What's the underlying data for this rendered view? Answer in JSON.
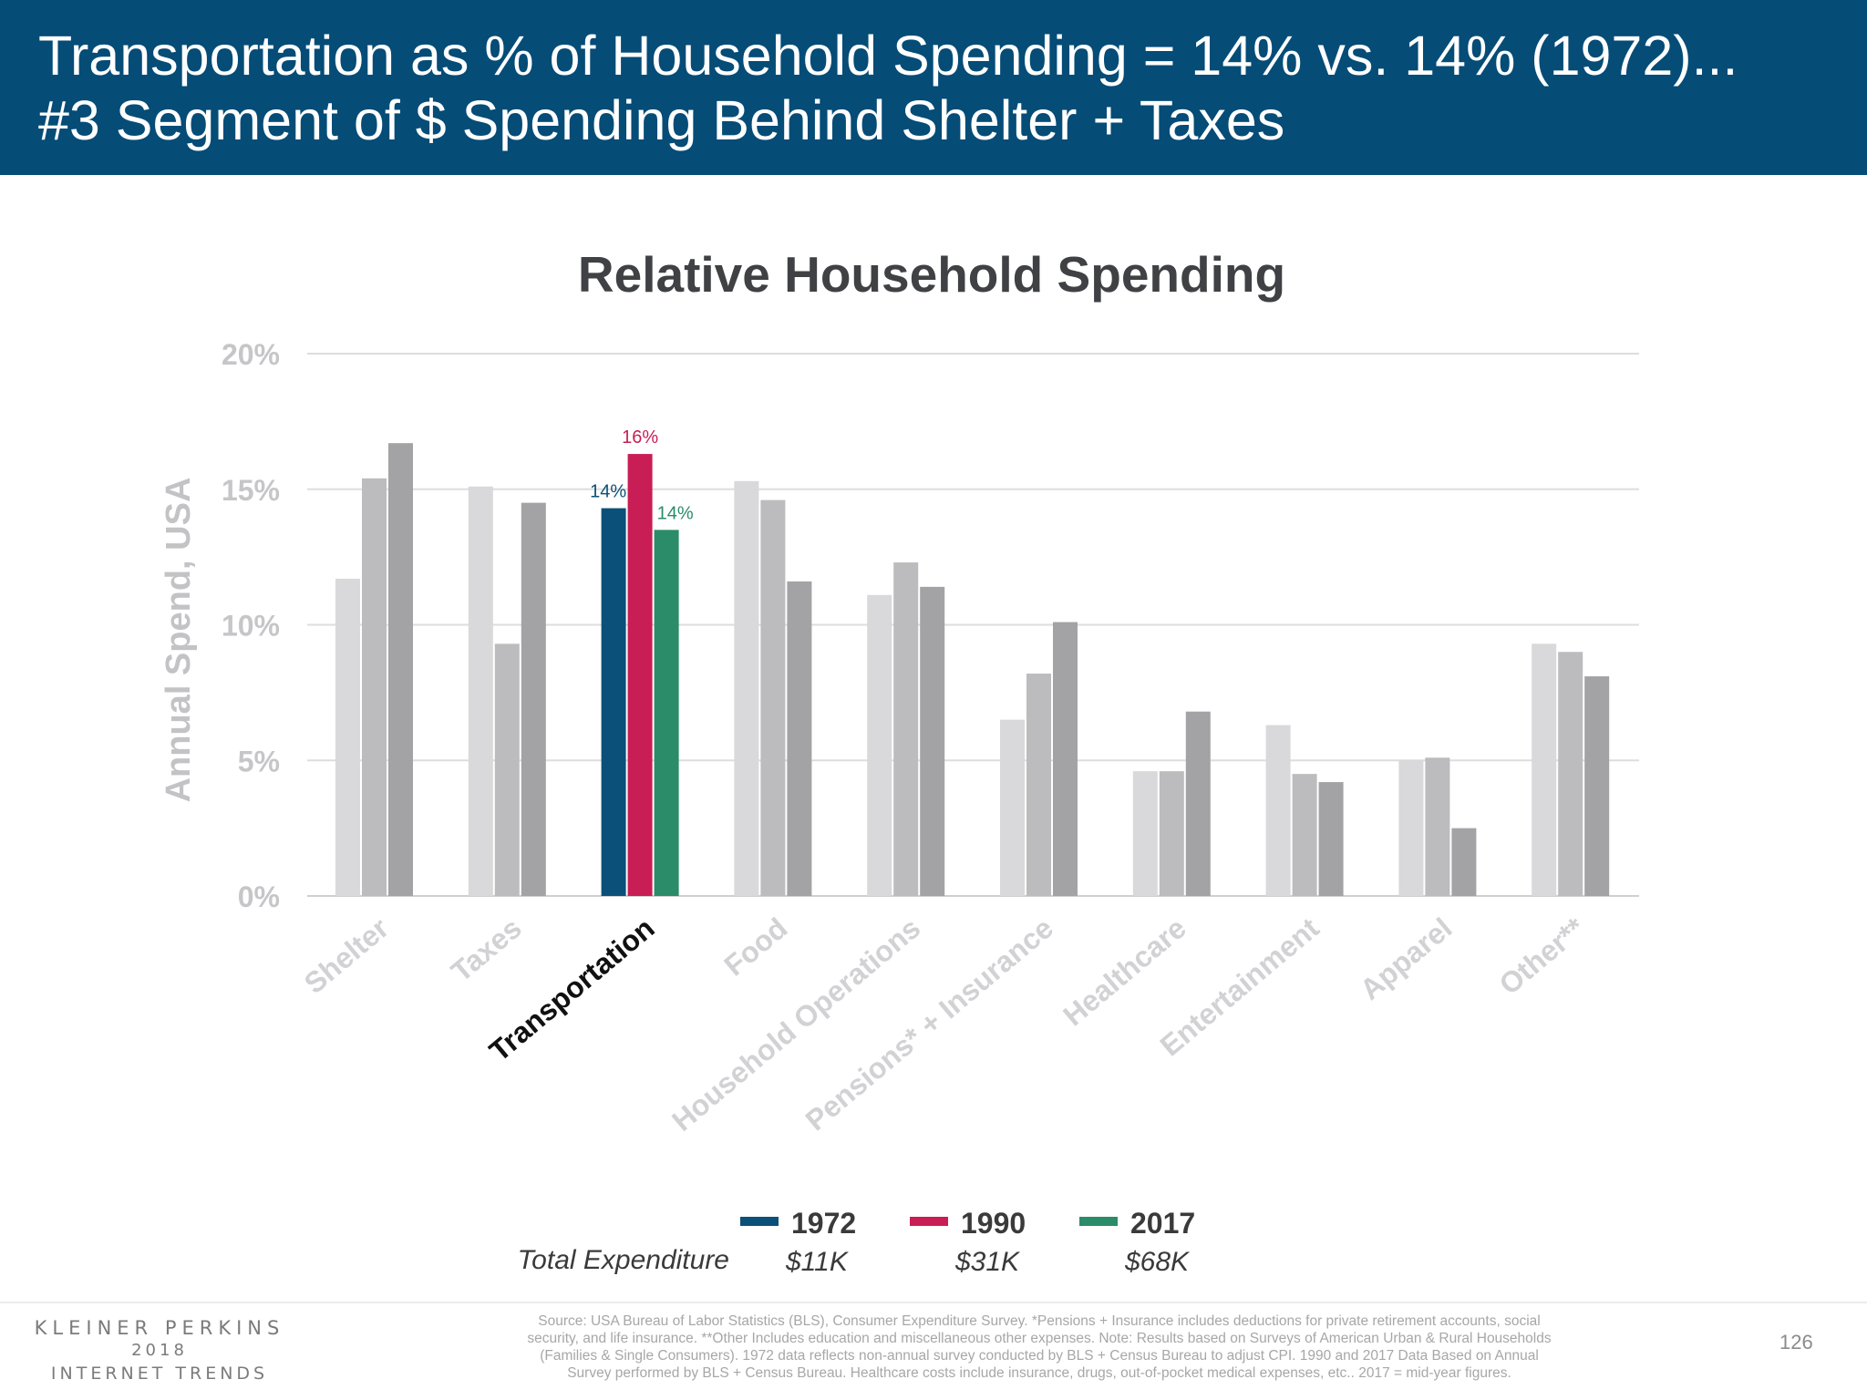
{
  "header": {
    "title_line1": "Transportation as % of Household Spending = 14% vs. 14% (1972)...",
    "title_line2": "#3 Segment of $ Spending Behind Shelter + Taxes"
  },
  "chart_data": {
    "type": "bar",
    "title": "Relative Household Spending",
    "ylabel": "Annual Spend, USA",
    "xlabel": "",
    "ylim": [
      0,
      20
    ],
    "yticks": [
      0,
      5,
      10,
      15,
      20
    ],
    "ytick_labels": [
      "0%",
      "5%",
      "10%",
      "15%",
      "20%"
    ],
    "grid": true,
    "legend_position": "bottom",
    "highlight_category": "Transportation",
    "categories": [
      "Shelter",
      "Taxes",
      "Transportation",
      "Food",
      "Household Operations",
      "Pensions* + Insurance",
      "Healthcare",
      "Entertainment",
      "Apparel",
      "Other**"
    ],
    "series": [
      {
        "name": "1972",
        "color": "#0b5078",
        "muted_color": "#d9d8da",
        "values": [
          11.7,
          15.1,
          14.3,
          15.3,
          11.1,
          6.5,
          4.6,
          6.3,
          5.0,
          9.3
        ]
      },
      {
        "name": "1990",
        "color": "#c81e55",
        "muted_color": "#bcbbbe",
        "values": [
          15.4,
          9.3,
          16.3,
          14.6,
          12.3,
          8.2,
          4.6,
          4.5,
          5.1,
          9.0
        ]
      },
      {
        "name": "2017",
        "color": "#2a8c69",
        "muted_color": "#a3a3a5",
        "values": [
          16.7,
          14.5,
          13.5,
          11.6,
          11.4,
          10.1,
          6.8,
          4.2,
          2.5,
          8.1
        ]
      }
    ],
    "data_labels": [
      "14%",
      "16%",
      "14%"
    ]
  },
  "legend": {
    "items": [
      {
        "label": "1972",
        "color": "#0b5078",
        "total": "$11K"
      },
      {
        "label": "1990",
        "color": "#c81e55",
        "total": "$31K"
      },
      {
        "label": "2017",
        "color": "#2a8c69",
        "total": "$68K"
      }
    ],
    "total_label": "Total Expenditure"
  },
  "footer": {
    "brand_line1": "KLEINER PERKINS",
    "brand_line2": "2018",
    "brand_line3": "INTERNET TRENDS",
    "source_lines": [
      "Source: USA Bureau of Labor Statistics (BLS), Consumer Expenditure Survey. *Pensions + Insurance includes deductions for private retirement accounts, social",
      "security, and life insurance. **Other Includes education and miscellaneous other expenses. Note: Results based on Surveys of American Urban & Rural Households",
      "(Families & Single Consumers). 1972 data reflects non-annual survey conducted by BLS + Census Bureau to adjust CPI. 1990 and 2017 Data Based on Annual",
      "Survey performed by BLS + Census Bureau. Healthcare costs include insurance, drugs, out-of-pocket medical expenses, etc.. 2017 = mid-year figures."
    ],
    "page_number": "126"
  }
}
